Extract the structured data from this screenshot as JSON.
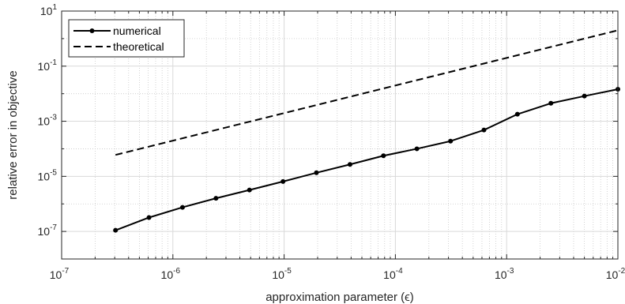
{
  "chart_data": {
    "type": "line",
    "title": "",
    "xlabel": "approximation parameter (ϵ)",
    "ylabel": "relative error in objective",
    "xscale": "log",
    "yscale": "log",
    "xlim": [
      1e-07,
      0.01
    ],
    "ylim": [
      1e-08,
      10
    ],
    "x_ticks": [
      {
        "base": "10",
        "exp": "-7"
      },
      {
        "base": "10",
        "exp": "-6"
      },
      {
        "base": "10",
        "exp": "-5"
      },
      {
        "base": "10",
        "exp": "-4"
      },
      {
        "base": "10",
        "exp": "-3"
      },
      {
        "base": "10",
        "exp": "-2"
      }
    ],
    "y_ticks": [
      {
        "base": "10",
        "exp": "-7"
      },
      {
        "base": "10",
        "exp": "-5"
      },
      {
        "base": "10",
        "exp": "-3"
      },
      {
        "base": "10",
        "exp": "-1"
      },
      {
        "base": "10",
        "exp": "1"
      }
    ],
    "grid": true,
    "legend_position": "top-left",
    "series": [
      {
        "name": "numerical",
        "style": "solid-with-markers",
        "color": "#000000",
        "x": [
          3.05e-07,
          6.1e-07,
          1.22e-06,
          2.44e-06,
          4.88e-06,
          9.77e-06,
          1.95e-05,
          3.91e-05,
          7.81e-05,
          0.000156,
          0.000313,
          0.000625,
          0.00125,
          0.0025,
          0.005,
          0.01
        ],
        "y": [
          1.1e-07,
          3.2e-07,
          7.5e-07,
          1.6e-06,
          3.2e-06,
          6.5e-06,
          1.35e-05,
          2.7e-05,
          5.6e-05,
          0.0001,
          0.00019,
          0.00048,
          0.0018,
          0.0045,
          0.0082,
          0.0145
        ]
      },
      {
        "name": "theoretical",
        "style": "dashed",
        "color": "#000000",
        "x": [
          3.05e-07,
          0.01
        ],
        "y": [
          6e-05,
          2.0
        ]
      }
    ]
  }
}
